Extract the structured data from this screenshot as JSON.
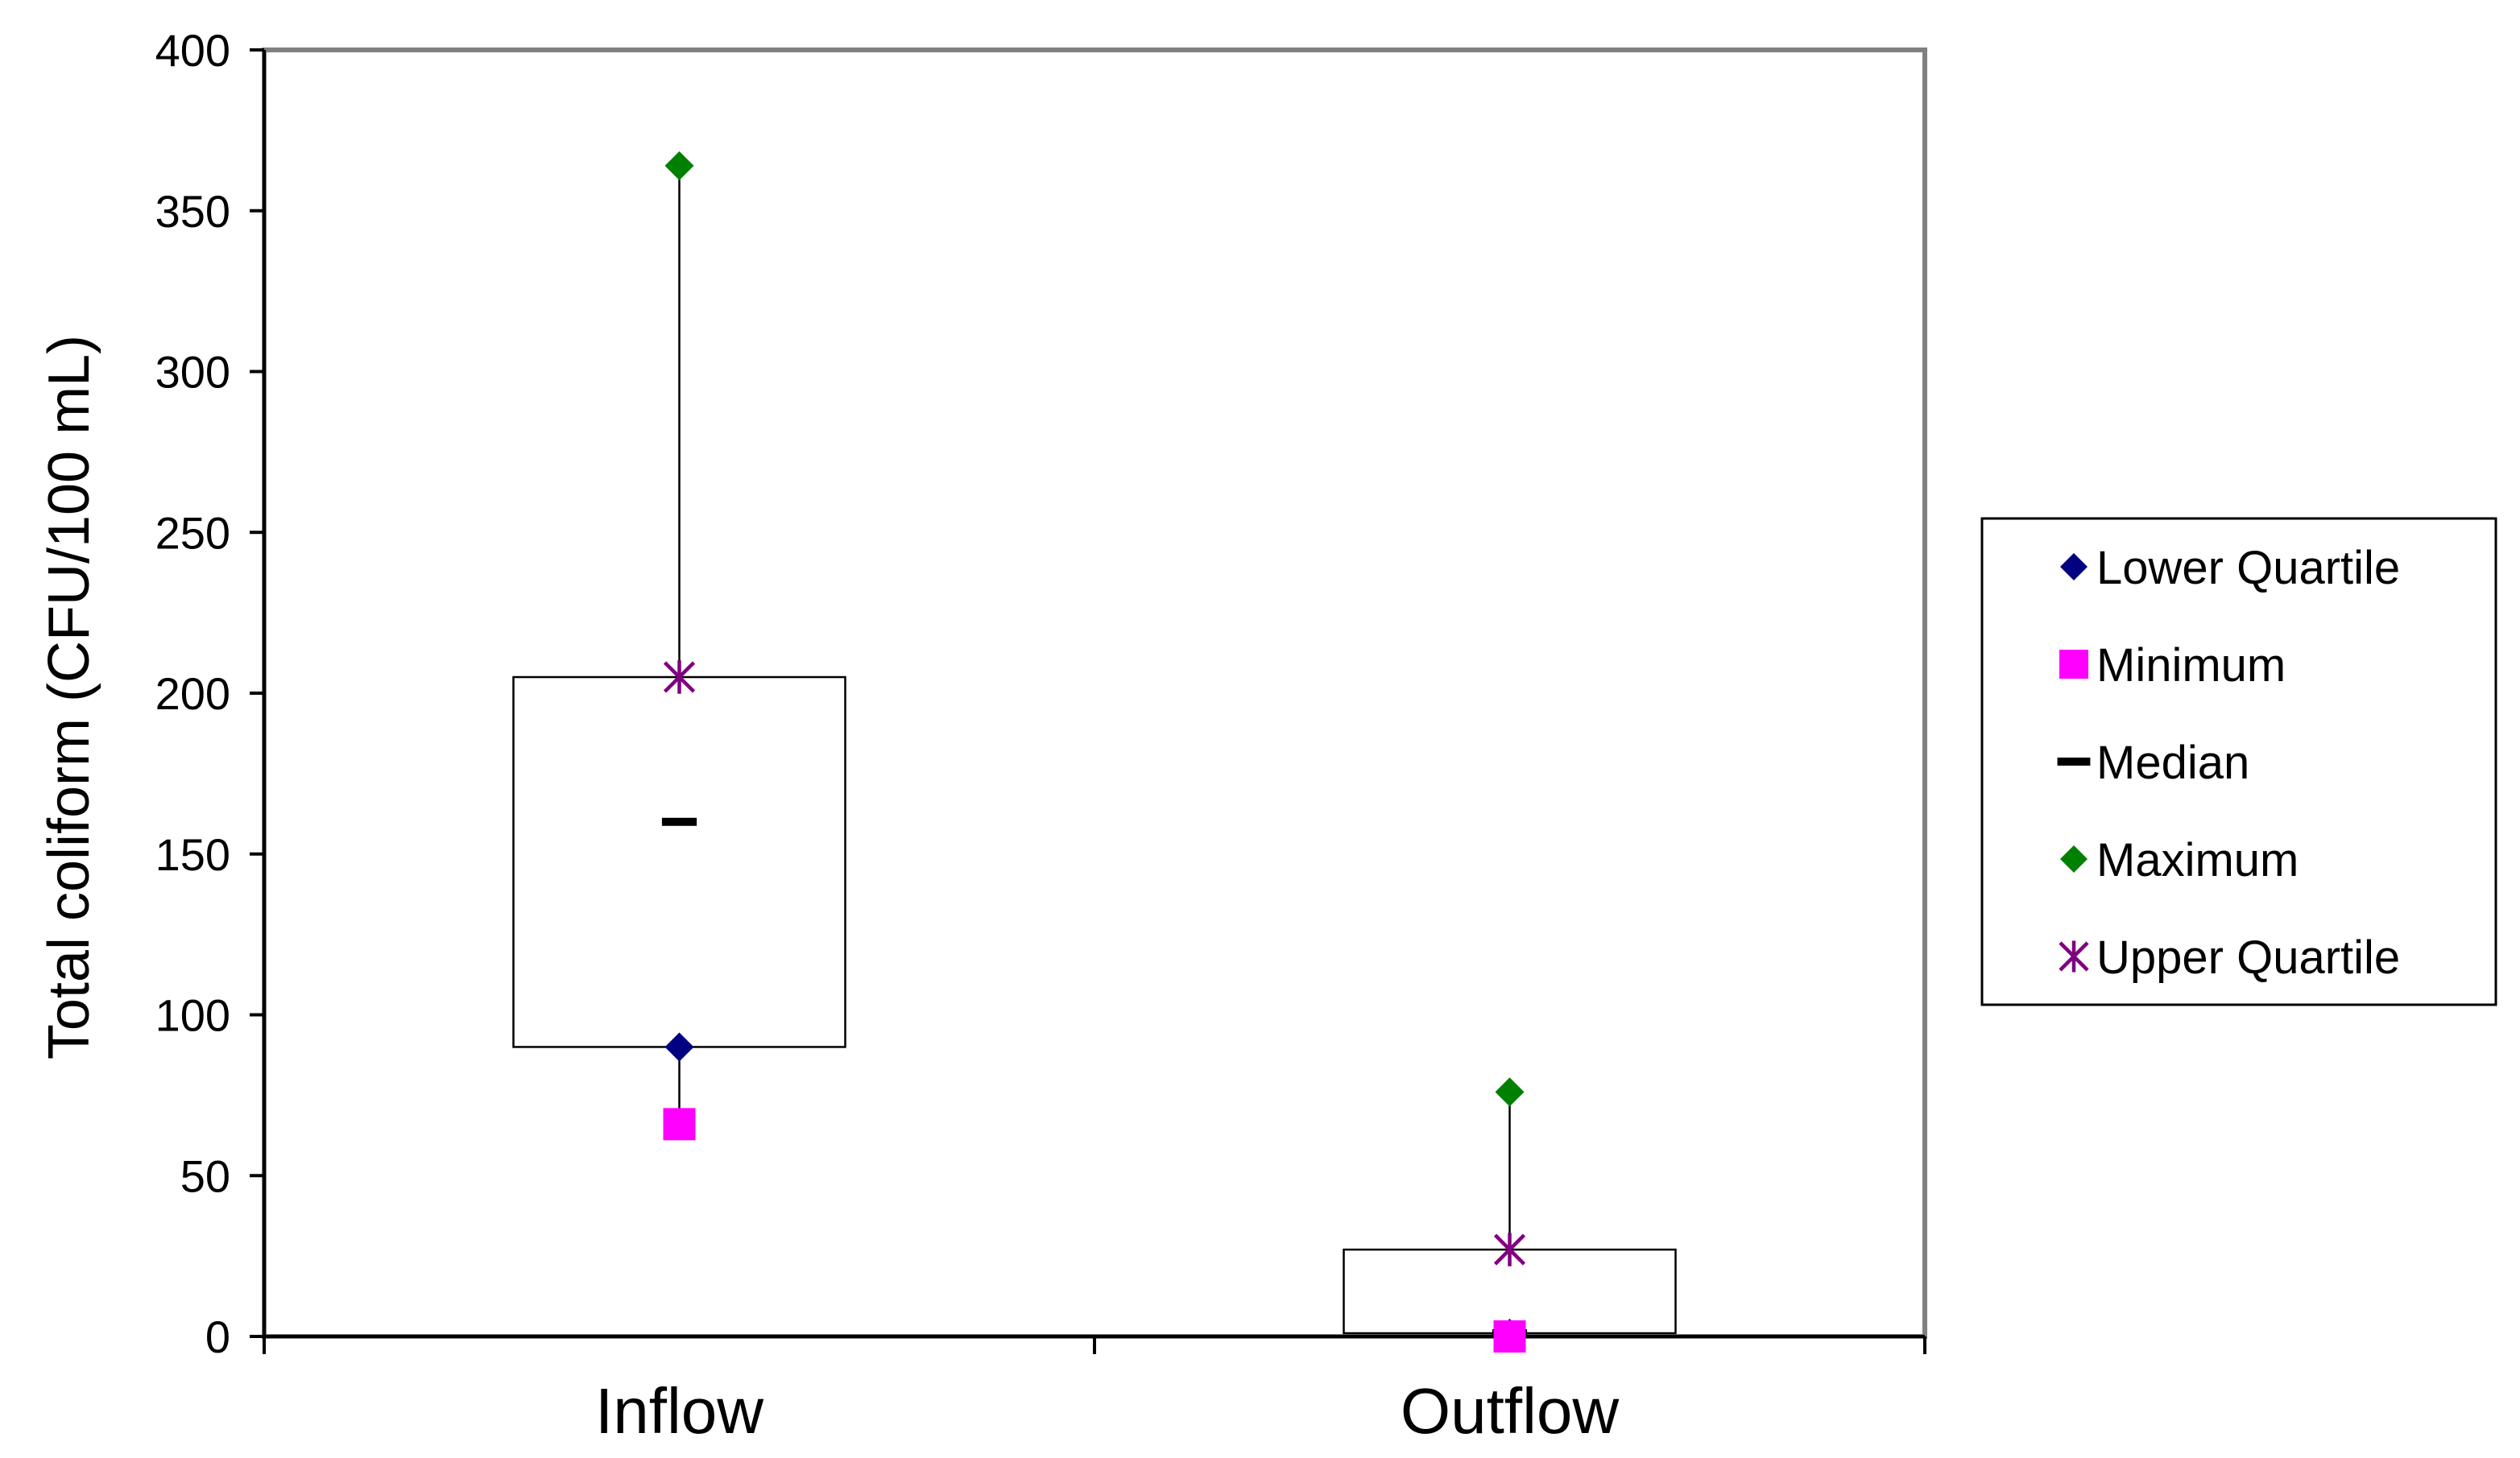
{
  "chart_data": {
    "type": "box",
    "title": "",
    "xlabel": "",
    "ylabel": "Total coliform (CFU/100 mL)",
    "ylim": [
      0,
      400
    ],
    "yticks": [
      0,
      50,
      100,
      150,
      200,
      250,
      300,
      350,
      400
    ],
    "categories": [
      "Inflow",
      "Outflow"
    ],
    "boxes": [
      {
        "category": "Inflow",
        "minimum": 66,
        "lower_quartile": 90,
        "median": 160,
        "upper_quartile": 205,
        "maximum": 364
      },
      {
        "category": "Outflow",
        "minimum": 0,
        "lower_quartile": 1,
        "median": 1,
        "upper_quartile": 27,
        "maximum": 76
      }
    ],
    "legend": {
      "position": "right",
      "entries": [
        {
          "key": "lower_quartile",
          "label": "Lower Quartile",
          "marker": "diamond",
          "color": "#000080"
        },
        {
          "key": "minimum",
          "label": "Minimum",
          "marker": "square",
          "color": "#ff00ff"
        },
        {
          "key": "median",
          "label": "Median",
          "marker": "dash",
          "color": "#000000"
        },
        {
          "key": "maximum",
          "label": "Maximum",
          "marker": "diamond",
          "color": "#008000"
        },
        {
          "key": "upper_quartile",
          "label": "Upper Quartile",
          "marker": "star",
          "color": "#800080"
        }
      ]
    },
    "plot_border_color": "#808080",
    "grid": false
  }
}
